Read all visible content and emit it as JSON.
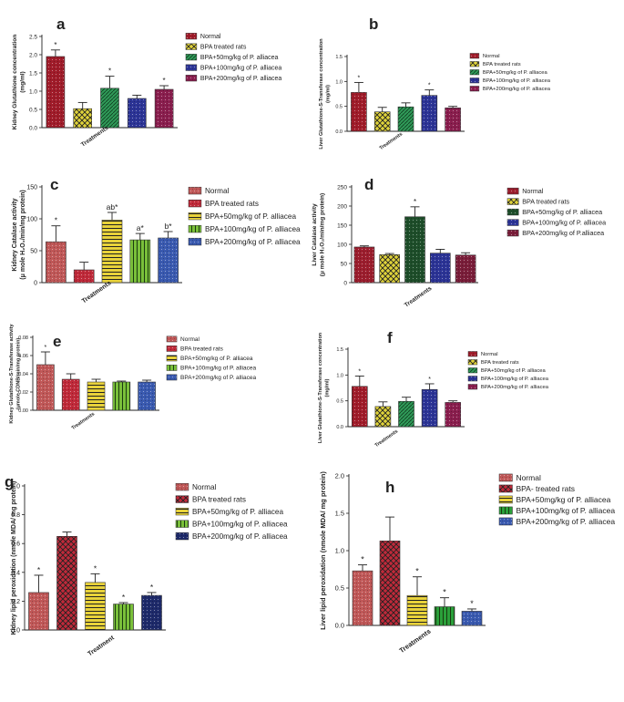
{
  "chart_data": [
    {
      "panel": "a",
      "type": "bar",
      "ylabel_lines": [
        "Kidney Glutathione concentration",
        "(mg/ml)"
      ],
      "xlabel": "Treatments",
      "yticks": [
        "0.0",
        "0.5",
        "1.0",
        "1.5",
        "2.0",
        "2.5"
      ],
      "ylim": [
        0,
        2.5
      ],
      "categories": [
        "Normal",
        "BPA treated rats",
        "BPA+50mg/kg of P. alliacea",
        "BPA+100mg/kg of P. alliacea",
        "BPA+200mg/kg of P. alliacea"
      ],
      "values": [
        1.95,
        0.52,
        1.08,
        0.8,
        1.05
      ],
      "errors": [
        0.18,
        0.17,
        0.33,
        0.09,
        0.1
      ],
      "annotations": [
        "*",
        "",
        "*",
        "",
        "*"
      ],
      "colors": [
        "#a01c2a",
        "#e0d33a",
        "#2f9a58",
        "#2c3496",
        "#8a1e4e"
      ],
      "patterns": [
        "dots",
        "check",
        "hatch",
        "dots",
        "dots"
      ]
    },
    {
      "panel": "b",
      "type": "bar",
      "ylabel_lines": [
        "Liver Glutathione-S-Transferase concentration",
        "(mg/ml)"
      ],
      "xlabel": "Treatments",
      "yticks": [
        "0.0",
        "0.5",
        "1.0",
        "1.5"
      ],
      "ylim": [
        0,
        1.5
      ],
      "categories": [
        "Normal",
        "BPA treated rats",
        "BPA+50mg/kg of P. alliacea",
        "BPA+100mg/kg of P. alliacea",
        "BPA+200mg/kg of P. alliacea"
      ],
      "values": [
        0.78,
        0.39,
        0.49,
        0.72,
        0.47
      ],
      "errors": [
        0.2,
        0.09,
        0.08,
        0.11,
        0.03
      ],
      "annotations": [
        "*",
        "",
        "",
        "*",
        ""
      ],
      "colors": [
        "#a01c2a",
        "#e0d33a",
        "#2f9a58",
        "#2c3496",
        "#8a1e4e"
      ],
      "patterns": [
        "dots",
        "check",
        "hatch",
        "dots",
        "dots"
      ]
    },
    {
      "panel": "c",
      "type": "bar",
      "ylabel_lines": [
        "Kidney Catalase activity",
        "(μ mole H₂O₂/min/mg protein)"
      ],
      "xlabel": "Treatments",
      "yticks": [
        "0",
        "50",
        "100",
        "150"
      ],
      "ylim": [
        0,
        150
      ],
      "categories": [
        "Normal",
        "BPA treated rats",
        "BPA+50mg/kg of P. alliacea",
        "BPA+100mg/kg of P. alliacea",
        "BPA+200mg/kg of P. alliacea"
      ],
      "values": [
        64,
        20,
        98,
        67,
        70
      ],
      "errors": [
        25,
        12,
        12,
        10,
        10
      ],
      "annotations": [
        "*",
        "",
        "ab*",
        "a*",
        "b*"
      ],
      "colors": [
        "#c05858",
        "#c02a3a",
        "#e8d23a",
        "#7ac03a",
        "#3a5ab0"
      ],
      "patterns": [
        "dots",
        "dots",
        "hlines",
        "vlines",
        "dots"
      ]
    },
    {
      "panel": "d",
      "type": "bar",
      "ylabel_lines": [
        "Liver Catalase activity",
        "(μ mole H₂O₂/min/mg protein)"
      ],
      "xlabel": "Treatments",
      "yticks": [
        "0",
        "50",
        "100",
        "150",
        "200",
        "250"
      ],
      "ylim": [
        0,
        250
      ],
      "categories": [
        "Normal",
        "BPA treated rats",
        "BPA+50mg/kg of P. alliacea",
        "BPA+100mg/kg of P. alliacea",
        "BPA+200mg/kg of P.alliacea"
      ],
      "values": [
        93,
        73,
        172,
        77,
        72
      ],
      "errors": [
        3,
        3,
        26,
        10,
        6
      ],
      "annotations": [
        "",
        "",
        "*",
        "",
        ""
      ],
      "colors": [
        "#9c1e2e",
        "#e0d33a",
        "#1e4e2a",
        "#2c3496",
        "#7a1e3a"
      ],
      "patterns": [
        "dots",
        "check",
        "dots",
        "dots",
        "dots"
      ]
    },
    {
      "panel": "e",
      "type": "bar",
      "ylabel_lines": [
        "Kidney Glutathione-S-Transferase activity",
        "(μmole CDNB/min/mg protein)"
      ],
      "xlabel": "Treatments",
      "yticks": [
        "0.00",
        "0.02",
        "0.04",
        "0.06",
        "0.08"
      ],
      "ylim": [
        0,
        0.08
      ],
      "categories": [
        "Normal",
        "BPA treated rats",
        "BPA+50mg/kg of P. alliacea",
        "BPA+100mg/kg of P. alliacea",
        "BPA+200mg/kg of P. alliacea"
      ],
      "values": [
        0.05,
        0.034,
        0.031,
        0.031,
        0.031
      ],
      "errors": [
        0.014,
        0.006,
        0.003,
        0.001,
        0.002
      ],
      "annotations": [
        "*",
        "",
        "",
        "",
        ""
      ],
      "colors": [
        "#c05858",
        "#c02a3a",
        "#e8d23a",
        "#7ac03a",
        "#3a5ab0"
      ],
      "patterns": [
        "dots",
        "dots",
        "hlines",
        "vlines",
        "dots"
      ]
    },
    {
      "panel": "f",
      "type": "bar",
      "ylabel_lines": [
        "Liver Glutathione-S-Transferase concentration",
        "(mg/ml)"
      ],
      "xlabel": "Treatments",
      "yticks": [
        "0.0",
        "0.5",
        "1.0",
        "1.5"
      ],
      "ylim": [
        0,
        1.5
      ],
      "categories": [
        "Normal",
        "BPA treated rats",
        "BPA+50mg/kg of P. alliacea",
        "BPA+100mg/kg of P. alliacea",
        "BPA+200mg/kg of P. alliacea"
      ],
      "values": [
        0.78,
        0.39,
        0.49,
        0.72,
        0.47
      ],
      "errors": [
        0.2,
        0.09,
        0.08,
        0.11,
        0.03
      ],
      "annotations": [
        "*",
        "",
        "",
        "*",
        ""
      ],
      "colors": [
        "#a01c2a",
        "#e0d33a",
        "#2f9a58",
        "#2c3496",
        "#8a1e4e"
      ],
      "patterns": [
        "dots",
        "check",
        "hatch",
        "dots",
        "dots"
      ]
    },
    {
      "panel": "g",
      "type": "bar",
      "ylabel_lines": [
        "Kidney lipid peroxidation (nmole MDA/ mg protein)"
      ],
      "xlabel": "Treatment",
      "yticks": [
        "0.0",
        "0.2",
        "0.4",
        "0.6",
        "0.8",
        "1.0"
      ],
      "ylim": [
        0,
        1.0
      ],
      "categories": [
        "Normal",
        "BPA treated rats",
        "BPA+50mg/kg of P. alliacea",
        "BPA+100mg/kg of P. alliacea",
        "BPA+200mg/kg of P. alliacea"
      ],
      "values": [
        0.26,
        0.65,
        0.33,
        0.18,
        0.24
      ],
      "errors": [
        0.12,
        0.03,
        0.06,
        0.01,
        0.02
      ],
      "annotations": [
        "*",
        "",
        "*",
        "*",
        "*"
      ],
      "colors": [
        "#c05858",
        "#c02a3a",
        "#e8d23a",
        "#7ac03a",
        "#1e2a6a"
      ],
      "patterns": [
        "dots",
        "check",
        "hlines",
        "vlines",
        "dots"
      ]
    },
    {
      "panel": "h",
      "type": "bar",
      "ylabel_lines": [
        "Liver lipid peroxidation (nmole MDA/ mg protein)"
      ],
      "xlabel": "Treatments",
      "yticks": [
        "0.0",
        "0.5",
        "1.0",
        "1.5",
        "2.0"
      ],
      "ylim": [
        0,
        2.0
      ],
      "categories": [
        "Normal",
        "BPA- treated rats",
        "BPA+50mg/kg of P. alliacea",
        "BPA+100mg/kg of P. alliacea",
        "BPA+200mg/kg of P. alliacea"
      ],
      "values": [
        0.73,
        1.13,
        0.4,
        0.25,
        0.19
      ],
      "errors": [
        0.08,
        0.32,
        0.25,
        0.12,
        0.03
      ],
      "annotations": [
        "*",
        "",
        "*",
        "*",
        "*"
      ],
      "colors": [
        "#c05858",
        "#c02a3a",
        "#e8d23a",
        "#2aa03a",
        "#3a5ab0"
      ],
      "patterns": [
        "dots",
        "check",
        "hlines",
        "vlines",
        "dots"
      ]
    }
  ]
}
